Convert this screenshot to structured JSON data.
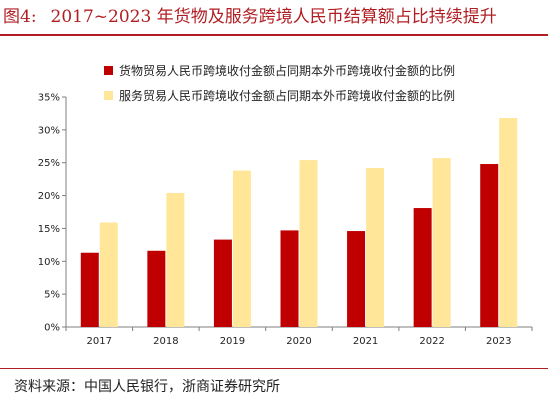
{
  "figure": {
    "label": "图4:",
    "title": "2017~2023 年货物及服务跨境人民币结算额占比持续提升",
    "source": "资料来源：中国人民银行，浙商证券研究所"
  },
  "colors": {
    "accent": "#b01e23",
    "series_goods": "#c00000",
    "series_services": "#ffe699"
  },
  "chart_data": {
    "type": "bar",
    "categories": [
      "2017",
      "2018",
      "2019",
      "2020",
      "2021",
      "2022",
      "2023"
    ],
    "series": [
      {
        "name": "货物贸易人民币跨境收付金额占同期本外币跨境收付金额的比例",
        "values": [
          11.3,
          11.6,
          13.3,
          14.7,
          14.6,
          18.1,
          24.8
        ]
      },
      {
        "name": "服务贸易人民币跨境收付金额占同期本外币跨境收付金额的比例",
        "values": [
          15.9,
          20.4,
          23.8,
          25.4,
          24.2,
          25.7,
          31.8
        ]
      }
    ],
    "ylim": [
      0,
      35
    ],
    "yticks": [
      "0%",
      "5%",
      "10%",
      "15%",
      "20%",
      "25%",
      "30%",
      "35%"
    ],
    "ytick_step": 5,
    "grid": false,
    "legend_position": "top-left"
  }
}
